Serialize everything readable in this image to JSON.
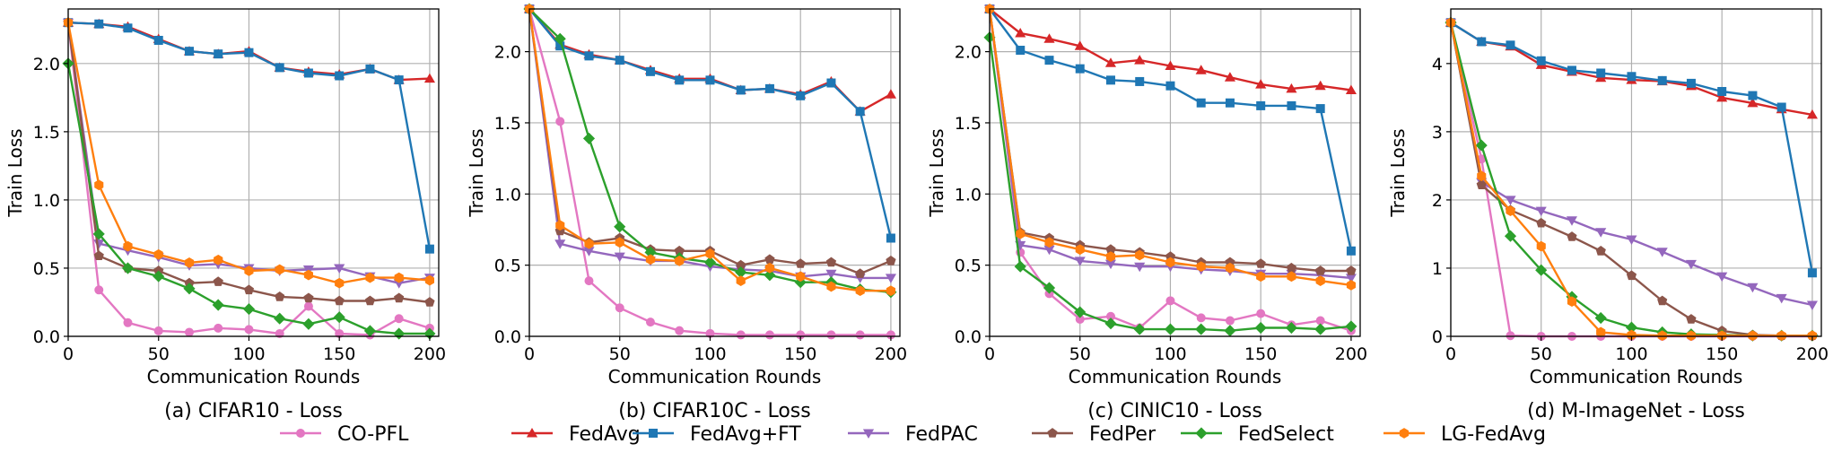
{
  "legend": {
    "placement": "bottom-center",
    "entries": [
      {
        "name": "CO-PFL",
        "color": "#e377c2",
        "marker": "circle"
      },
      {
        "name": "FedAvg",
        "color": "#d62728",
        "marker": "triangle-up"
      },
      {
        "name": "FedAvg+FT",
        "color": "#1f77b4",
        "marker": "square"
      },
      {
        "name": "FedPAC",
        "color": "#9467bd",
        "marker": "triangle-down"
      },
      {
        "name": "FedPer",
        "color": "#8c564b",
        "marker": "pentagon"
      },
      {
        "name": "FedSelect",
        "color": "#2ca02c",
        "marker": "diamond"
      },
      {
        "name": "LG-FedAvg",
        "color": "#ff7f0e",
        "marker": "hexagon"
      }
    ]
  },
  "chart_data": [
    {
      "type": "line",
      "title": "(a) CIFAR10 - Loss",
      "xlabel": "Communication Rounds",
      "ylabel": "Train Loss",
      "xlim": [
        0,
        205
      ],
      "ylim": [
        0,
        2.4
      ],
      "xticks": [
        0,
        50,
        100,
        150,
        200
      ],
      "yticks": [
        0.0,
        0.5,
        1.0,
        1.5,
        2.0
      ],
      "ytick_labels": [
        "0.0",
        "0.5",
        "1.0",
        "1.5",
        "2.0"
      ],
      "grid": true,
      "x": [
        0,
        17,
        33,
        50,
        67,
        83,
        100,
        117,
        133,
        150,
        167,
        183,
        200
      ],
      "series": [
        {
          "name": "CO-PFL",
          "values": [
            2.3,
            0.34,
            0.1,
            0.04,
            0.03,
            0.06,
            0.05,
            0.02,
            0.22,
            0.02,
            0.01,
            0.13,
            0.06
          ]
        },
        {
          "name": "FedAvg",
          "values": [
            2.3,
            2.29,
            2.27,
            2.18,
            2.09,
            2.07,
            2.09,
            1.97,
            1.94,
            1.92,
            1.96,
            1.88,
            1.89
          ]
        },
        {
          "name": "FedAvg+FT",
          "values": [
            2.3,
            2.29,
            2.26,
            2.17,
            2.09,
            2.07,
            2.08,
            1.97,
            1.93,
            1.91,
            1.96,
            1.88,
            0.64
          ]
        },
        {
          "name": "FedPAC",
          "values": [
            2.3,
            0.68,
            0.63,
            0.58,
            0.52,
            0.53,
            0.5,
            0.48,
            0.49,
            0.5,
            0.44,
            0.39,
            0.43
          ]
        },
        {
          "name": "FedPer",
          "values": [
            2.3,
            0.59,
            0.5,
            0.48,
            0.39,
            0.4,
            0.34,
            0.29,
            0.28,
            0.26,
            0.26,
            0.28,
            0.25
          ]
        },
        {
          "name": "FedSelect",
          "values": [
            2.0,
            0.75,
            0.5,
            0.44,
            0.35,
            0.23,
            0.2,
            0.13,
            0.09,
            0.14,
            0.04,
            0.02,
            0.02
          ]
        },
        {
          "name": "LG-FedAvg",
          "values": [
            2.3,
            1.11,
            0.66,
            0.6,
            0.54,
            0.56,
            0.48,
            0.49,
            0.45,
            0.39,
            0.43,
            0.43,
            0.41
          ]
        }
      ]
    },
    {
      "type": "line",
      "title": "(b) CIFAR10C - Loss",
      "xlabel": "Communication Rounds",
      "ylabel": "Train Loss",
      "xlim": [
        0,
        205
      ],
      "ylim": [
        0,
        2.3
      ],
      "xticks": [
        0,
        50,
        100,
        150,
        200
      ],
      "yticks": [
        0.0,
        0.5,
        1.0,
        1.5,
        2.0
      ],
      "ytick_labels": [
        "0.0",
        "0.5",
        "1.0",
        "1.5",
        "2.0"
      ],
      "grid": true,
      "x": [
        0,
        17,
        33,
        50,
        67,
        83,
        100,
        117,
        133,
        150,
        167,
        183,
        200
      ],
      "series": [
        {
          "name": "CO-PFL",
          "values": [
            2.3,
            1.51,
            0.39,
            0.2,
            0.1,
            0.04,
            0.02,
            0.01,
            0.01,
            0.01,
            0.01,
            0.01,
            0.01
          ]
        },
        {
          "name": "FedAvg",
          "values": [
            2.3,
            2.05,
            1.98,
            1.94,
            1.87,
            1.81,
            1.81,
            1.73,
            1.74,
            1.7,
            1.79,
            1.58,
            1.7
          ]
        },
        {
          "name": "FedAvg+FT",
          "values": [
            2.3,
            2.04,
            1.97,
            1.94,
            1.86,
            1.8,
            1.8,
            1.73,
            1.74,
            1.69,
            1.78,
            1.58,
            0.69
          ]
        },
        {
          "name": "FedPAC",
          "values": [
            2.3,
            0.65,
            0.6,
            0.56,
            0.53,
            0.53,
            0.49,
            0.47,
            0.46,
            0.42,
            0.44,
            0.41,
            0.41
          ]
        },
        {
          "name": "FedPer",
          "values": [
            2.3,
            0.74,
            0.66,
            0.69,
            0.61,
            0.6,
            0.6,
            0.5,
            0.54,
            0.51,
            0.52,
            0.44,
            0.53
          ]
        },
        {
          "name": "FedSelect",
          "values": [
            2.3,
            2.09,
            1.39,
            0.77,
            0.59,
            0.55,
            0.52,
            0.45,
            0.43,
            0.38,
            0.38,
            0.33,
            0.31
          ]
        },
        {
          "name": "LG-FedAvg",
          "values": [
            2.3,
            0.78,
            0.65,
            0.66,
            0.54,
            0.53,
            0.58,
            0.39,
            0.48,
            0.42,
            0.35,
            0.32,
            0.32
          ]
        }
      ]
    },
    {
      "type": "line",
      "title": "(c) CINIC10 - Loss",
      "xlabel": "Communication Rounds",
      "ylabel": "Train Loss",
      "xlim": [
        0,
        205
      ],
      "ylim": [
        0,
        2.3
      ],
      "xticks": [
        0,
        50,
        100,
        150,
        200
      ],
      "yticks": [
        0.0,
        0.5,
        1.0,
        1.5,
        2.0
      ],
      "ytick_labels": [
        "0.0",
        "0.5",
        "1.0",
        "1.5",
        "2.0"
      ],
      "grid": true,
      "x": [
        0,
        17,
        33,
        50,
        67,
        83,
        100,
        117,
        133,
        150,
        167,
        183,
        200
      ],
      "series": [
        {
          "name": "CO-PFL",
          "values": [
            2.3,
            0.59,
            0.3,
            0.12,
            0.14,
            0.06,
            0.25,
            0.13,
            0.11,
            0.16,
            0.08,
            0.11,
            0.04
          ]
        },
        {
          "name": "FedAvg",
          "values": [
            2.3,
            2.13,
            2.09,
            2.04,
            1.92,
            1.94,
            1.9,
            1.87,
            1.82,
            1.77,
            1.74,
            1.76,
            1.73
          ]
        },
        {
          "name": "FedAvg+FT",
          "values": [
            2.3,
            2.01,
            1.94,
            1.88,
            1.8,
            1.79,
            1.76,
            1.64,
            1.64,
            1.62,
            1.62,
            1.6,
            0.6
          ]
        },
        {
          "name": "FedPAC",
          "values": [
            2.3,
            0.64,
            0.61,
            0.53,
            0.51,
            0.49,
            0.49,
            0.47,
            0.46,
            0.44,
            0.44,
            0.43,
            0.41
          ]
        },
        {
          "name": "FedPer",
          "values": [
            2.3,
            0.73,
            0.69,
            0.64,
            0.61,
            0.59,
            0.56,
            0.52,
            0.52,
            0.51,
            0.48,
            0.46,
            0.46
          ]
        },
        {
          "name": "FedSelect",
          "values": [
            2.1,
            0.49,
            0.34,
            0.17,
            0.09,
            0.05,
            0.05,
            0.05,
            0.04,
            0.06,
            0.06,
            0.05,
            0.07
          ]
        },
        {
          "name": "LG-FedAvg",
          "values": [
            2.3,
            0.72,
            0.66,
            0.61,
            0.56,
            0.57,
            0.52,
            0.49,
            0.48,
            0.42,
            0.42,
            0.39,
            0.36
          ]
        }
      ]
    },
    {
      "type": "line",
      "title": "(d) M-ImageNet - Loss",
      "xlabel": "Communication Rounds",
      "ylabel": "Train Loss",
      "xlim": [
        0,
        205
      ],
      "ylim": [
        0,
        4.8
      ],
      "xticks": [
        0,
        50,
        100,
        150,
        200
      ],
      "yticks": [
        0,
        1,
        2,
        3,
        4
      ],
      "ytick_labels": [
        "0",
        "1",
        "2",
        "3",
        "4"
      ],
      "grid": true,
      "x": [
        0,
        17,
        33,
        50,
        67,
        83,
        100,
        117,
        133,
        150,
        167,
        183,
        200
      ],
      "series": [
        {
          "name": "CO-PFL",
          "values": [
            4.6,
            2.6,
            0.01,
            0.0,
            0.0,
            0.0,
            0.0,
            0.0,
            0.0,
            0.0,
            0.0,
            0.0,
            0.0
          ]
        },
        {
          "name": "FedAvg",
          "values": [
            4.6,
            4.32,
            4.25,
            3.98,
            3.88,
            3.79,
            3.76,
            3.74,
            3.67,
            3.5,
            3.42,
            3.33,
            3.25
          ]
        },
        {
          "name": "FedAvg+FT",
          "values": [
            4.6,
            4.32,
            4.27,
            4.04,
            3.9,
            3.86,
            3.81,
            3.75,
            3.71,
            3.59,
            3.53,
            3.36,
            0.93
          ]
        },
        {
          "name": "FedPAC",
          "values": [
            4.6,
            2.26,
            2.0,
            1.84,
            1.7,
            1.53,
            1.42,
            1.24,
            1.06,
            0.88,
            0.72,
            0.56,
            0.46
          ]
        },
        {
          "name": "FedPer",
          "values": [
            4.6,
            2.22,
            1.85,
            1.66,
            1.46,
            1.25,
            0.89,
            0.52,
            0.25,
            0.08,
            0.02,
            0.01,
            0.01
          ]
        },
        {
          "name": "FedSelect",
          "values": [
            4.6,
            2.8,
            1.47,
            0.97,
            0.58,
            0.27,
            0.13,
            0.06,
            0.03,
            0.02,
            0.01,
            0.01,
            0.01
          ]
        },
        {
          "name": "LG-FedAvg",
          "values": [
            4.6,
            2.35,
            1.84,
            1.32,
            0.51,
            0.06,
            0.02,
            0.01,
            0.01,
            0.01,
            0.01,
            0.01,
            0.01
          ]
        }
      ]
    }
  ]
}
